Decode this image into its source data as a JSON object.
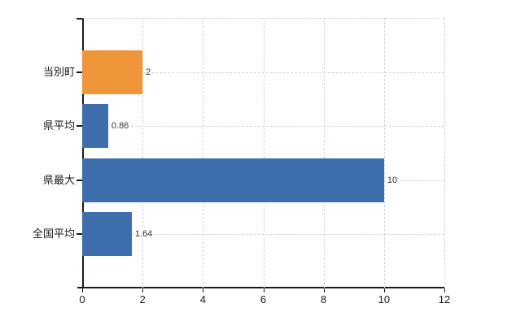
{
  "chart_data": {
    "type": "bar",
    "orientation": "horizontal",
    "title": "",
    "xlabel": "",
    "ylabel": "",
    "categories": [
      "当別町",
      "県平均",
      "県最大",
      "全国平均"
    ],
    "values": [
      2,
      0.86,
      10,
      1.64
    ],
    "value_labels": [
      "2",
      "0.86",
      "10",
      "1.64"
    ],
    "bar_colors": [
      "#F0963A",
      "#3E6DAE",
      "#3E6DAE",
      "#3E6DAE"
    ],
    "xlim": [
      0,
      12
    ],
    "x_tick_values": [
      0,
      2,
      4,
      6,
      8,
      10,
      12
    ],
    "x_tick_labels": [
      "0",
      "2",
      "4",
      "6",
      "8",
      "10",
      "12"
    ],
    "grid": true,
    "legend": false
  },
  "colors": {
    "highlight_bar": "#F0963A",
    "default_bar": "#3E6DAE",
    "grid": "#D4D4D4",
    "axis": "#1A1A1A",
    "text": "#1A1A1A",
    "value_text": "#333333",
    "background": "#FFFFFF"
  }
}
